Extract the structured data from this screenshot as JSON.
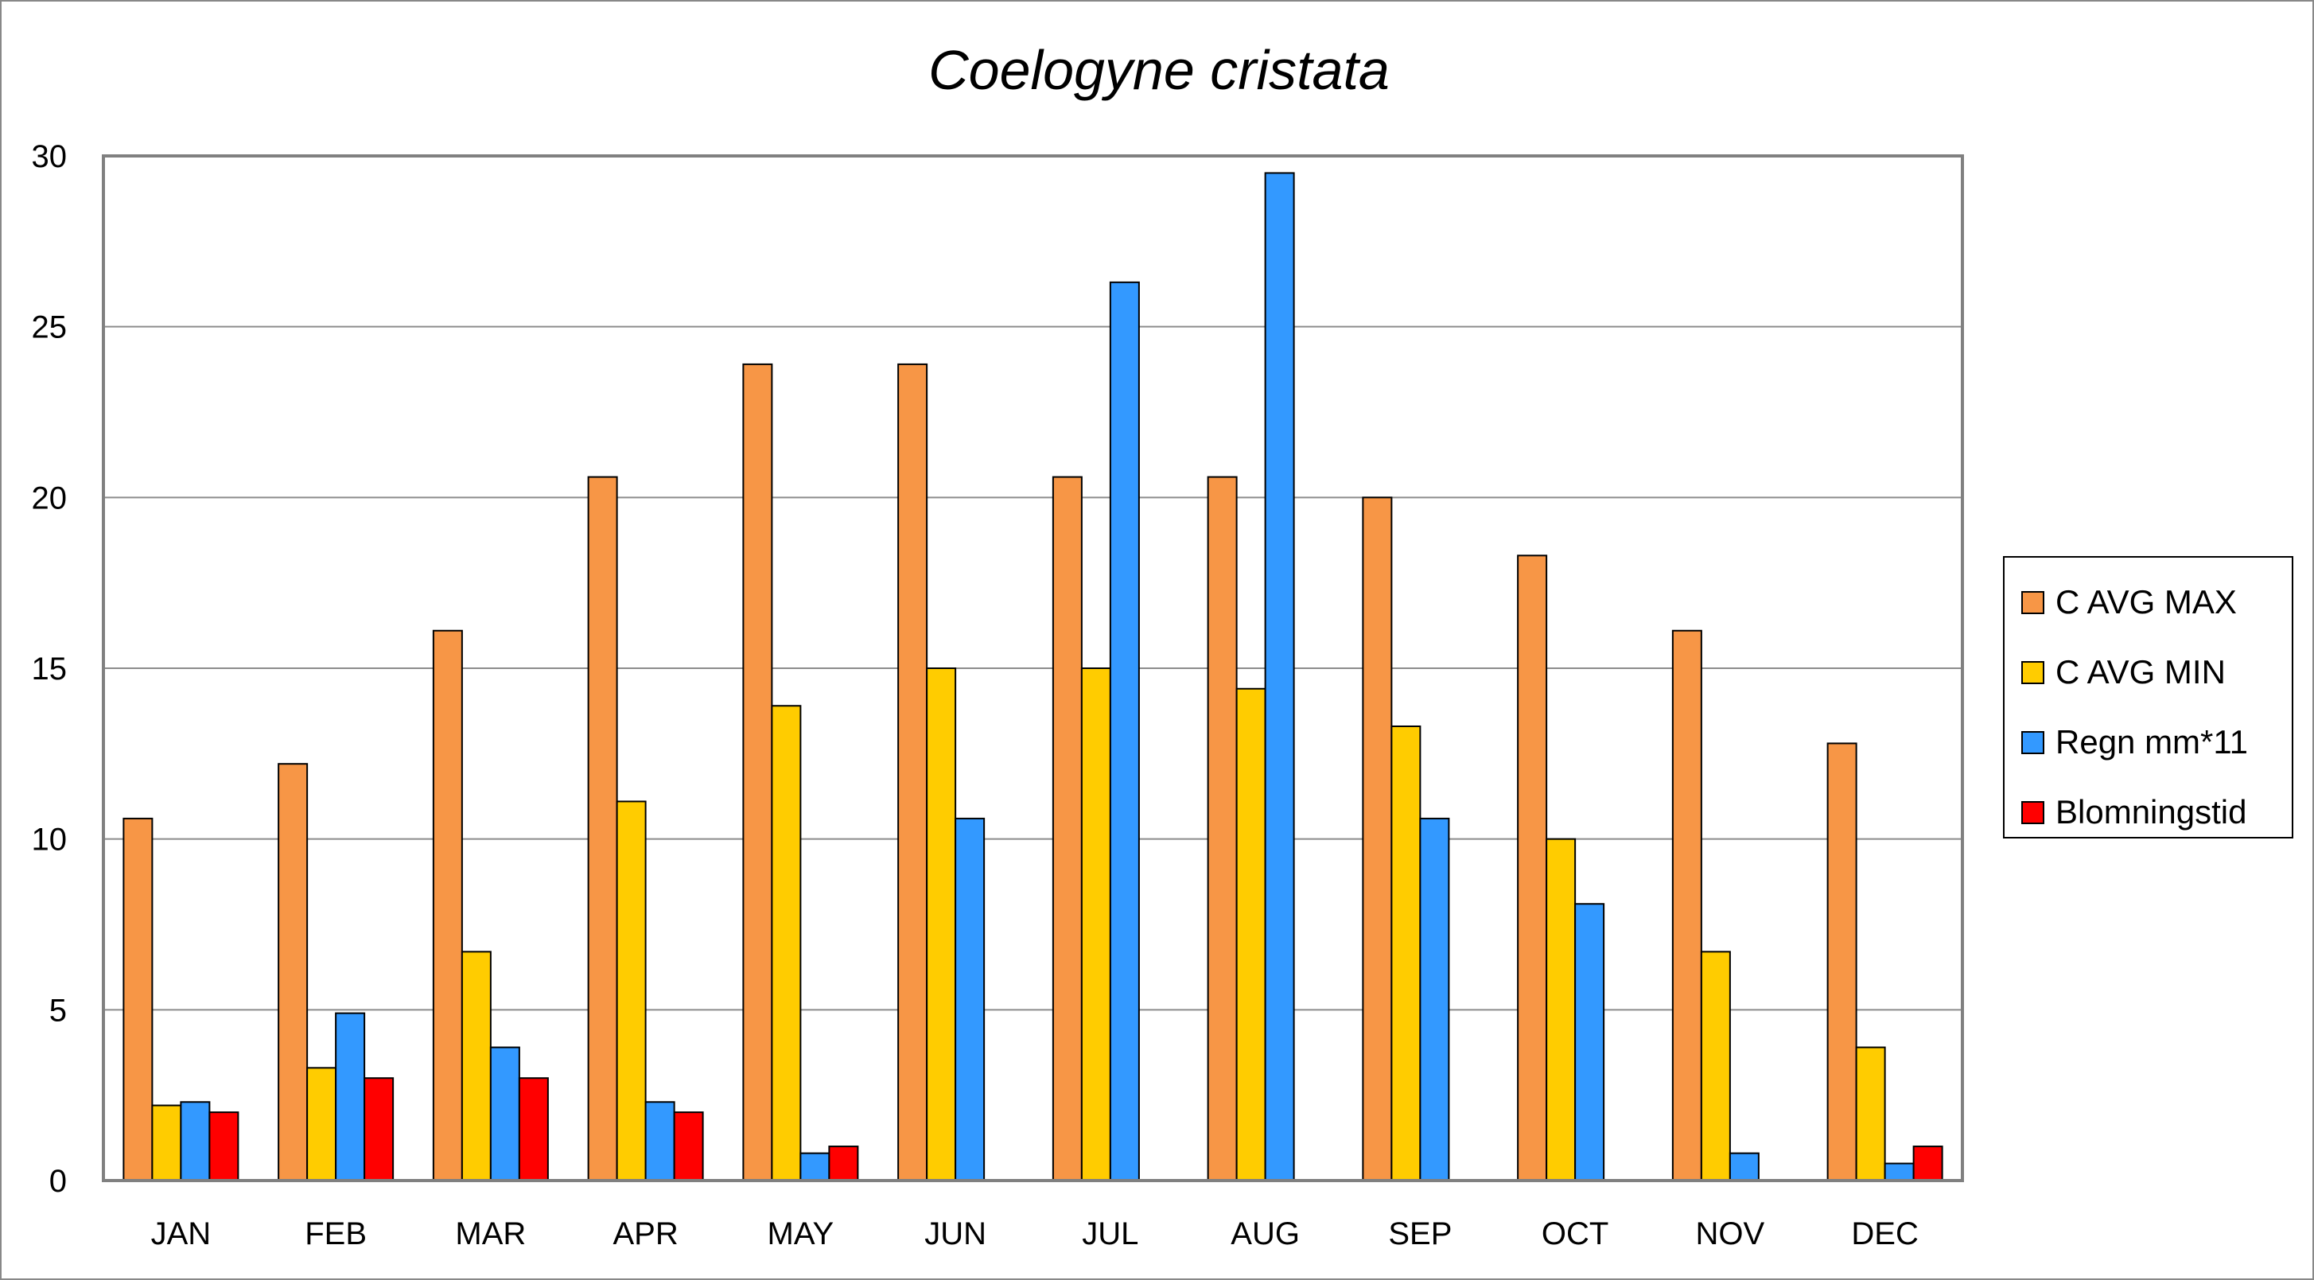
{
  "chart_data": {
    "type": "bar",
    "title": "Coelogyne cristata",
    "xlabel": "",
    "ylabel": "",
    "ylim": [
      0,
      30
    ],
    "yticks": [
      0,
      5,
      10,
      15,
      20,
      25,
      30
    ],
    "grid": true,
    "legend_position": "right",
    "categories": [
      "JAN",
      "FEB",
      "MAR",
      "APR",
      "MAY",
      "JUN",
      "JUL",
      "AUG",
      "SEP",
      "OCT",
      "NOV",
      "DEC"
    ],
    "series": [
      {
        "name": "C AVG MAX",
        "color": "#F79646",
        "values": [
          10.6,
          12.2,
          16.1,
          20.6,
          23.9,
          23.9,
          20.6,
          20.6,
          20.0,
          18.3,
          16.1,
          12.8
        ]
      },
      {
        "name": "C AVG MIN",
        "color": "#FFCC00",
        "values": [
          2.2,
          3.3,
          6.7,
          11.1,
          13.9,
          15.0,
          15.0,
          14.4,
          13.3,
          10.0,
          6.7,
          3.9
        ]
      },
      {
        "name": "Regn mm*11",
        "color": "#3399FF",
        "values": [
          2.3,
          4.9,
          3.9,
          2.3,
          0.8,
          10.6,
          26.3,
          29.5,
          10.6,
          8.1,
          0.8,
          0.5
        ]
      },
      {
        "name": "Blomningstid",
        "color": "#FF0000",
        "values": [
          2,
          3,
          3,
          2,
          1,
          0,
          0,
          0,
          0,
          0,
          0,
          1
        ]
      }
    ]
  }
}
